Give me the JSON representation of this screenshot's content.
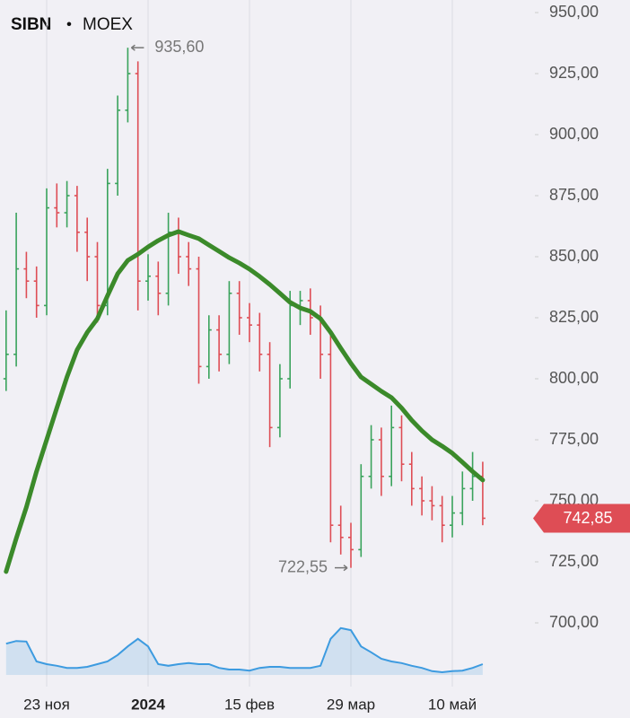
{
  "chart_data": {
    "type": "ohlc",
    "ticker": "SIBN",
    "separator": "•",
    "exchange": "MOEX",
    "categories": [
      null,
      null,
      null,
      null,
      "23 ноя",
      null,
      null,
      null,
      null,
      null,
      null,
      null,
      null,
      null,
      "2024",
      null,
      null,
      null,
      null,
      null,
      null,
      null,
      null,
      null,
      "15 фев",
      null,
      null,
      null,
      null,
      null,
      null,
      null,
      null,
      null,
      "29 мар",
      null,
      null,
      null,
      null,
      null,
      null,
      null,
      null,
      null,
      "10 май",
      null,
      null,
      null
    ],
    "open": [
      800,
      810,
      845,
      840,
      830,
      870,
      868,
      875,
      860,
      850,
      830,
      880,
      910,
      925,
      840,
      842,
      835,
      860,
      850,
      845,
      805,
      820,
      810,
      835,
      825,
      822,
      810,
      780,
      800,
      830,
      832,
      825,
      810,
      740,
      735,
      730,
      760,
      775,
      760,
      780,
      765,
      755,
      750,
      748,
      740,
      745,
      755,
      760
    ],
    "high": [
      828,
      868,
      852,
      846,
      878,
      880,
      881,
      879,
      866,
      856,
      886,
      916,
      935.6,
      930,
      851,
      848,
      868,
      866,
      856,
      850,
      826,
      826,
      840,
      840,
      831,
      827,
      815,
      806,
      836,
      836,
      837,
      830,
      818,
      748,
      741,
      765,
      781,
      780,
      789,
      785,
      770,
      760,
      756,
      752,
      752,
      762,
      770,
      766
    ],
    "low": [
      795,
      805,
      833,
      825,
      826,
      862,
      862,
      852,
      840,
      823,
      826,
      875,
      905,
      828,
      832,
      826,
      830,
      843,
      838,
      798,
      800,
      803,
      806,
      818,
      815,
      803,
      772,
      776,
      796,
      822,
      818,
      800,
      733,
      728,
      722.55,
      727,
      755,
      752,
      756,
      758,
      748,
      744,
      742,
      733,
      735,
      740,
      750,
      740
    ],
    "close": [
      810,
      845,
      840,
      830,
      870,
      868,
      875,
      860,
      850,
      830,
      880,
      910,
      925,
      840,
      842,
      835,
      860,
      850,
      845,
      805,
      820,
      810,
      835,
      825,
      822,
      810,
      780,
      800,
      830,
      832,
      825,
      810,
      740,
      735,
      730,
      760,
      775,
      760,
      780,
      765,
      755,
      750,
      748,
      740,
      745,
      755,
      760,
      742.85
    ],
    "ma": [
      721,
      734.6,
      747.4,
      762,
      775,
      788,
      800.7,
      811.8,
      819,
      824.6,
      834,
      843,
      848.5,
      851,
      854,
      856.6,
      858.8,
      860.3,
      858.8,
      857.4,
      854.8,
      852.2,
      849.6,
      847.4,
      844.9,
      841.9,
      838.6,
      835,
      831.3,
      829,
      827.6,
      824.6,
      819,
      812.5,
      806.3,
      800.7,
      797.8,
      794.9,
      792.3,
      788,
      783,
      778.7,
      775,
      772.4,
      769.5,
      765.8,
      762,
      758.5
    ],
    "ma_color": "#3b8a2a",
    "volume": [
      58,
      63,
      62,
      25,
      20,
      17,
      13,
      13,
      15,
      20,
      25,
      37,
      53,
      67,
      53,
      20,
      17,
      20,
      22,
      20,
      20,
      13,
      10,
      10,
      8,
      13,
      15,
      15,
      13,
      13,
      13,
      17,
      67,
      87,
      83,
      53,
      42,
      30,
      25,
      22,
      17,
      13,
      7,
      5,
      7,
      8,
      13,
      20
    ],
    "volume_lim": [
      0,
      100
    ],
    "volume_color": "#3d9be0",
    "up_color": "#3aa35c",
    "down_color": "#de4d55",
    "ylim": [
      700,
      950
    ],
    "yticks": [
      {
        "value": 950,
        "label": "950,00"
      },
      {
        "value": 925,
        "label": "925,00"
      },
      {
        "value": 900,
        "label": "900,00"
      },
      {
        "value": 875,
        "label": "875,00"
      },
      {
        "value": 850,
        "label": "850,00"
      },
      {
        "value": 825,
        "label": "825,00"
      },
      {
        "value": 800,
        "label": "800,00"
      },
      {
        "value": 775,
        "label": "775,00"
      },
      {
        "value": 750,
        "label": "750,00"
      },
      {
        "value": 725,
        "label": "725,00"
      },
      {
        "value": 700,
        "label": "700,00"
      }
    ],
    "annotations": [
      {
        "value": 935.6,
        "label": "935,60"
      },
      {
        "value": 722.55,
        "label": "722,55"
      }
    ],
    "last_price": {
      "value": 742.85,
      "label": "742,85"
    },
    "x_grid": true
  }
}
